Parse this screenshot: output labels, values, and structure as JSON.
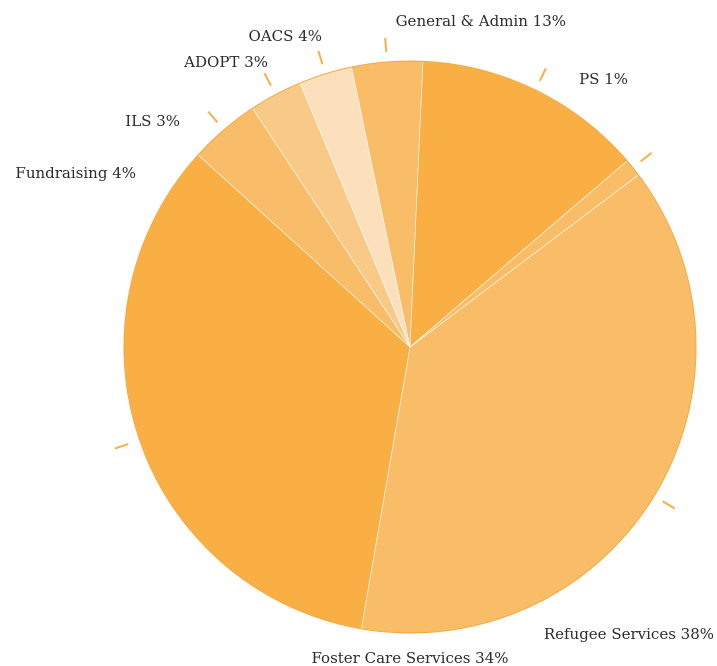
{
  "chart_data": {
    "type": "pie",
    "title": "",
    "slices": [
      {
        "label": "Refugee Services 38%",
        "value": 38,
        "color": "#F9BD67"
      },
      {
        "label": "Foster Care Services 34%",
        "value": 34,
        "color": "#F9AF43"
      },
      {
        "label": "Fundraising 4%",
        "value": 4,
        "color": "#F9BC68"
      },
      {
        "label": "ILS 3%",
        "value": 3,
        "color": "#F9CA87"
      },
      {
        "label": "ADOPT 3%",
        "value": 3,
        "color": "#FBE0BB"
      },
      {
        "label": "OACS 4%",
        "value": 4,
        "color": "#F9BD67"
      },
      {
        "label": "General & Admin 13%",
        "value": 13,
        "color": "#F9AF43"
      },
      {
        "label": "PS 1%",
        "value": 1,
        "color": "#F9BD67"
      }
    ],
    "legend": "none",
    "label_style": "outside-with-leader-ticks"
  }
}
